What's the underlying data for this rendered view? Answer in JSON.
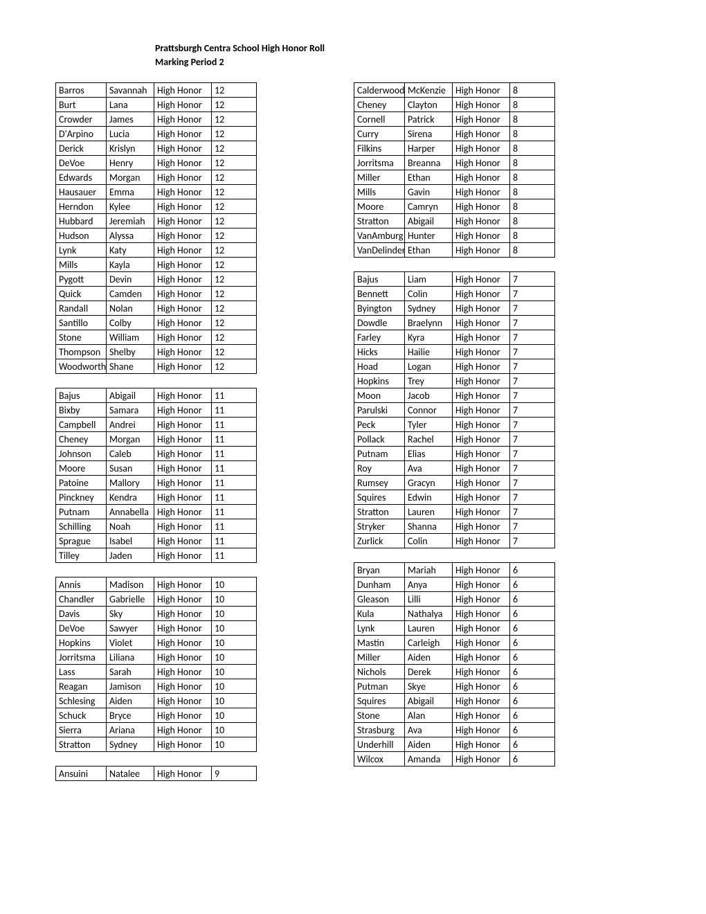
{
  "title_line1": "Prattsburgh Centra School High Honor Roll",
  "title_line2": "Marking Period 2",
  "honor": "High Honor",
  "left_groups": [
    [
      [
        "Barros",
        "Savannah",
        "12"
      ],
      [
        "Burt",
        "Lana",
        "12"
      ],
      [
        "Crowder",
        "James",
        "12"
      ],
      [
        "D'Arpino",
        "Lucia",
        "12"
      ],
      [
        "Derick",
        "Krislyn",
        "12"
      ],
      [
        "DeVoe",
        "Henry",
        "12"
      ],
      [
        "Edwards",
        "Morgan",
        "12"
      ],
      [
        "Hausauer",
        "Emma",
        "12"
      ],
      [
        "Herndon",
        "Kylee",
        "12"
      ],
      [
        "Hubbard",
        "Jeremiah",
        "12"
      ],
      [
        "Hudson",
        "Alyssa",
        "12"
      ],
      [
        "Lynk",
        "Katy",
        "12"
      ],
      [
        "Mills",
        "Kayla",
        "12"
      ],
      [
        "Pygott",
        "Devin",
        "12"
      ],
      [
        "Quick",
        "Camden",
        "12"
      ],
      [
        "Randall",
        "Nolan",
        "12"
      ],
      [
        "Santillo",
        "Colby",
        "12"
      ],
      [
        "Stone",
        "William",
        "12"
      ],
      [
        "Thompson",
        "Shelby",
        "12"
      ],
      [
        "Woodworth",
        "Shane",
        "12"
      ]
    ],
    [
      [
        "Bajus",
        "Abigail",
        "11"
      ],
      [
        "Bixby",
        "Samara",
        "11"
      ],
      [
        "Campbell",
        "Andrei",
        "11"
      ],
      [
        "Cheney",
        "Morgan",
        "11"
      ],
      [
        "Johnson",
        "Caleb",
        "11"
      ],
      [
        "Moore",
        "Susan",
        "11"
      ],
      [
        "Patoine",
        "Mallory",
        "11"
      ],
      [
        "Pinckney",
        "Kendra",
        "11"
      ],
      [
        "Putnam",
        "Annabella",
        "11"
      ],
      [
        "Schilling",
        "Noah",
        "11"
      ],
      [
        "Sprague",
        "Isabel",
        "11"
      ],
      [
        "Tilley",
        "Jaden",
        "11"
      ]
    ],
    [
      [
        "Annis",
        "Madison",
        "10"
      ],
      [
        "Chandler",
        "Gabrielle",
        "10"
      ],
      [
        "Davis",
        "Sky",
        "10"
      ],
      [
        "DeVoe",
        "Sawyer",
        "10"
      ],
      [
        "Hopkins",
        "Violet",
        "10"
      ],
      [
        "Jorritsma",
        "Liliana",
        "10"
      ],
      [
        "Lass",
        "Sarah",
        "10"
      ],
      [
        "Reagan",
        "Jamison",
        "10"
      ],
      [
        "Schlesing",
        "Aiden",
        "10"
      ],
      [
        "Schuck",
        "Bryce",
        "10"
      ],
      [
        "Sierra",
        "Ariana",
        "10"
      ],
      [
        "Stratton",
        "Sydney",
        "10"
      ]
    ],
    [
      [
        "Ansuini",
        "Natalee",
        "9"
      ]
    ]
  ],
  "right_groups": [
    [
      [
        "Calderwood",
        "McKenzie",
        "8"
      ],
      [
        "Cheney",
        "Clayton",
        "8"
      ],
      [
        "Cornell",
        "Patrick",
        "8"
      ],
      [
        "Curry",
        "Sirena",
        "8"
      ],
      [
        "Filkins",
        "Harper",
        "8"
      ],
      [
        "Jorritsma",
        "Breanna",
        "8"
      ],
      [
        "Miller",
        "Ethan",
        "8"
      ],
      [
        "Mills",
        "Gavin",
        "8"
      ],
      [
        "Moore",
        "Camryn",
        "8"
      ],
      [
        "Stratton",
        "Abigail",
        "8"
      ],
      [
        "VanAmburg",
        "Hunter",
        "8"
      ],
      [
        "VanDelinder",
        "Ethan",
        "8"
      ]
    ],
    [
      [
        "Bajus",
        "Liam",
        "7"
      ],
      [
        "Bennett",
        "Colin",
        "7"
      ],
      [
        "Byington",
        "Sydney",
        "7"
      ],
      [
        "Dowdle",
        "Braelynn",
        "7"
      ],
      [
        "Farley",
        "Kyra",
        "7"
      ],
      [
        "Hicks",
        "Hailie",
        "7"
      ],
      [
        "Hoad",
        "Logan",
        "7"
      ],
      [
        "Hopkins",
        "Trey",
        "7"
      ],
      [
        "Moon",
        "Jacob",
        "7"
      ],
      [
        "Parulski",
        "Connor",
        "7"
      ],
      [
        "Peck",
        "Tyler",
        "7"
      ],
      [
        "Pollack",
        "Rachel",
        "7"
      ],
      [
        "Putnam",
        "Elias",
        "7"
      ],
      [
        "Roy",
        "Ava",
        "7"
      ],
      [
        "Rumsey",
        "Gracyn",
        "7"
      ],
      [
        "Squires",
        "Edwin",
        "7"
      ],
      [
        "Stratton",
        "Lauren",
        "7"
      ],
      [
        "Stryker",
        "Shanna",
        "7"
      ],
      [
        "Zurlick",
        "Colin",
        "7"
      ]
    ],
    [
      [
        "Bryan",
        "Mariah",
        "6"
      ],
      [
        "Dunham",
        "Anya",
        "6"
      ],
      [
        "Gleason",
        "Lilli",
        "6"
      ],
      [
        "Kula",
        "Nathalya",
        "6"
      ],
      [
        "Lynk",
        "Lauren",
        "6"
      ],
      [
        "Mastin",
        "Carleigh",
        "6"
      ],
      [
        "Miller",
        "Aiden",
        "6"
      ],
      [
        "Nichols",
        "Derek",
        "6"
      ],
      [
        "Putman",
        "Skye",
        "6"
      ],
      [
        "Squires",
        "Abigail",
        "6"
      ],
      [
        "Stone",
        "Alan",
        "6"
      ],
      [
        "Strasburg",
        "Ava",
        "6"
      ],
      [
        "Underhill",
        "Aiden",
        "6"
      ],
      [
        "Wilcox",
        "Amanda",
        "6"
      ]
    ]
  ]
}
